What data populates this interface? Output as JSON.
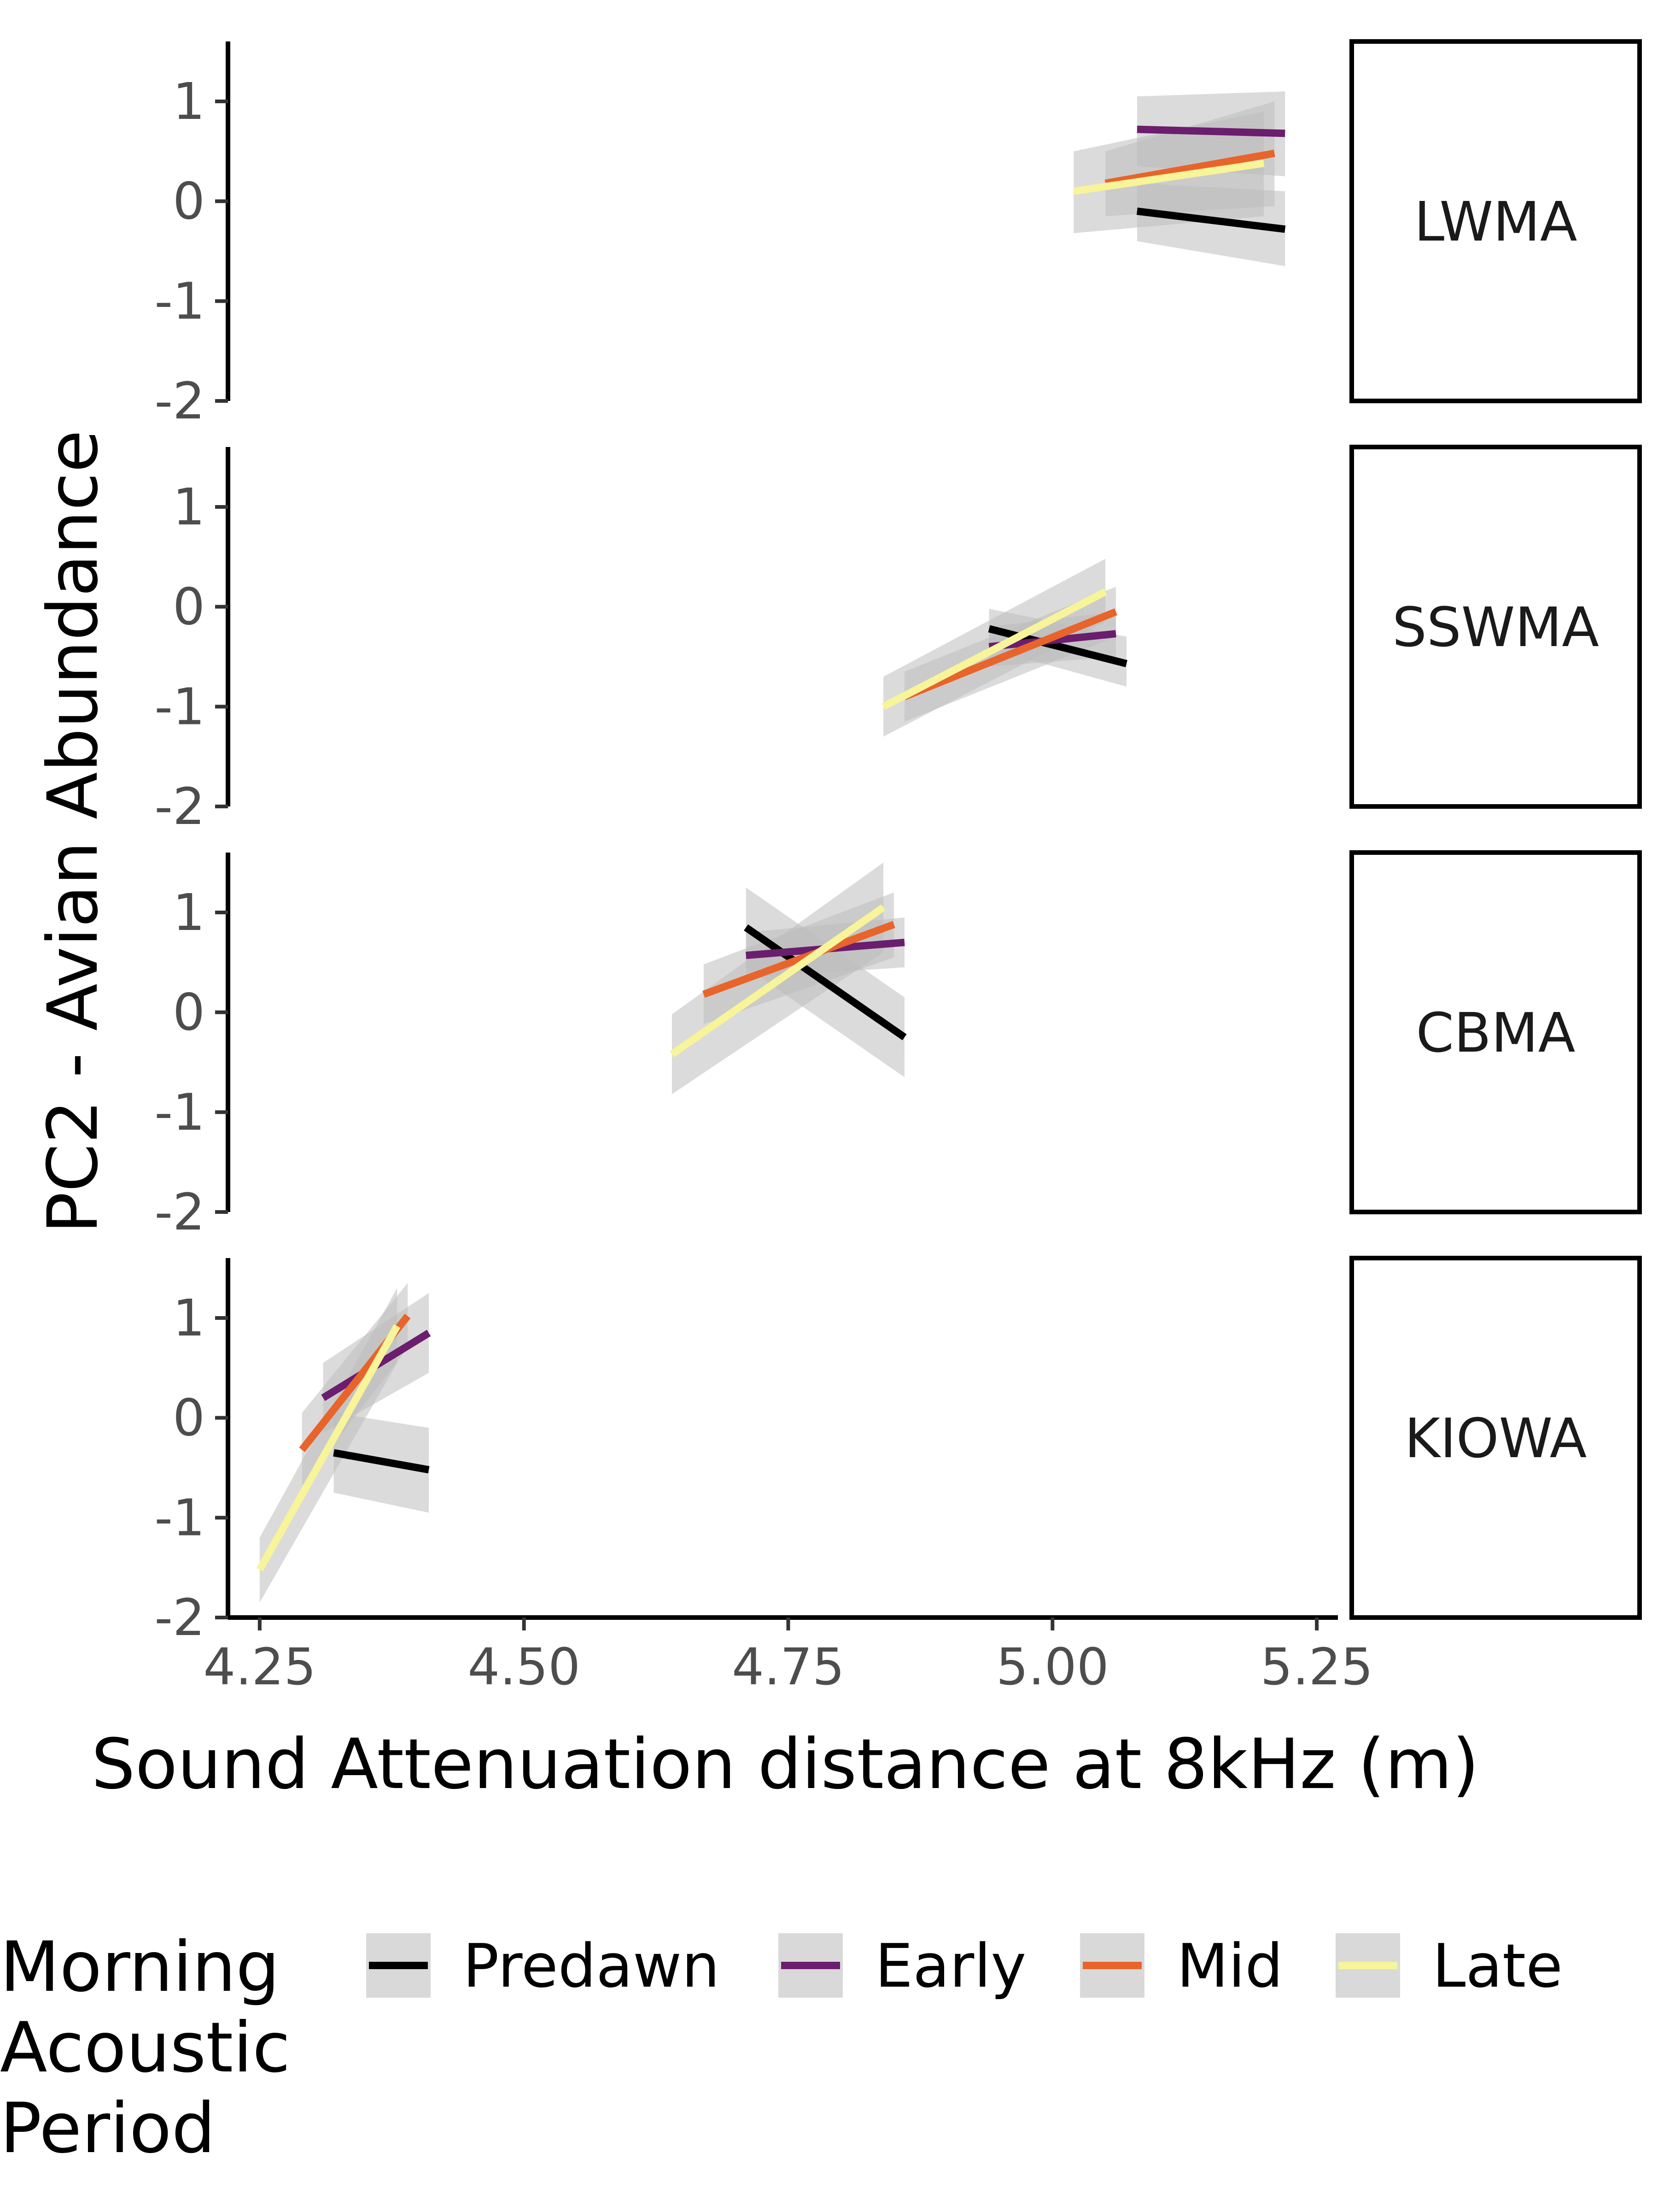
{
  "chart_data": {
    "type": "line",
    "title": "",
    "xlabel": "Sound Attenuation distance at 8kHz (m)",
    "ylabel": "PC2 - Avian Abundance",
    "xlim": [
      4.22,
      5.27
    ],
    "ylim": [
      -2,
      1.6
    ],
    "xticks": [
      "4.25",
      "4.50",
      "4.75",
      "5.00",
      "5.25"
    ],
    "yticks": [
      "-2",
      "-1",
      "0",
      "1"
    ],
    "grid": false,
    "legend": {
      "title": "Morning Acoustic Period",
      "title_lines": [
        "Morning",
        "Acoustic",
        "Period"
      ],
      "position": "bottom",
      "entries": [
        {
          "name": "Predawn",
          "color": "#000000"
        },
        {
          "name": "Early",
          "color": "#6b1d6e"
        },
        {
          "name": "Mid",
          "color": "#e8642a"
        },
        {
          "name": "Late",
          "color": "#f7f49a"
        }
      ]
    },
    "ribbon_color": "#bdbdbd",
    "panels": [
      {
        "label": "LWMA",
        "series": [
          {
            "name": "Predawn",
            "x": [
              5.08,
              5.22
            ],
            "y": [
              -0.1,
              -0.28
            ],
            "band": [
              [
                -0.4,
                0.18
              ],
              [
                -0.65,
                0.1
              ]
            ]
          },
          {
            "name": "Early",
            "x": [
              5.08,
              5.22
            ],
            "y": [
              0.72,
              0.68
            ],
            "band": [
              [
                0.35,
                1.05
              ],
              [
                0.25,
                1.1
              ]
            ]
          },
          {
            "name": "Mid",
            "x": [
              5.05,
              5.21
            ],
            "y": [
              0.18,
              0.48
            ],
            "band": [
              [
                -0.15,
                0.5
              ],
              [
                -0.05,
                1.0
              ]
            ]
          },
          {
            "name": "Late",
            "x": [
              5.02,
              5.2
            ],
            "y": [
              0.1,
              0.38
            ],
            "band": [
              [
                -0.32,
                0.5
              ],
              [
                -0.15,
                0.9
              ]
            ]
          }
        ]
      },
      {
        "label": "SSWMA",
        "series": [
          {
            "name": "Predawn",
            "x": [
              4.94,
              5.07
            ],
            "y": [
              -0.22,
              -0.57
            ],
            "band": [
              [
                -0.42,
                -0.02
              ],
              [
                -0.8,
                -0.3
              ]
            ]
          },
          {
            "name": "Early",
            "x": [
              4.94,
              5.06
            ],
            "y": [
              -0.4,
              -0.27
            ],
            "band": [
              [
                -0.6,
                -0.2
              ],
              [
                -0.5,
                -0.05
              ]
            ]
          },
          {
            "name": "Mid",
            "x": [
              4.86,
              5.06
            ],
            "y": [
              -0.9,
              -0.05
            ],
            "band": [
              [
                -1.15,
                -0.65
              ],
              [
                -0.3,
                0.2
              ]
            ]
          },
          {
            "name": "Late",
            "x": [
              4.84,
              5.05
            ],
            "y": [
              -1.0,
              0.15
            ],
            "band": [
              [
                -1.3,
                -0.7
              ],
              [
                -0.15,
                0.48
              ]
            ]
          }
        ]
      },
      {
        "label": "CBMA",
        "series": [
          {
            "name": "Predawn",
            "x": [
              4.71,
              4.86
            ],
            "y": [
              0.85,
              -0.25
            ],
            "band": [
              [
                0.45,
                1.25
              ],
              [
                -0.65,
                0.15
              ]
            ]
          },
          {
            "name": "Early",
            "x": [
              4.71,
              4.86
            ],
            "y": [
              0.57,
              0.7
            ],
            "band": [
              [
                0.35,
                0.8
              ],
              [
                0.45,
                0.95
              ]
            ]
          },
          {
            "name": "Mid",
            "x": [
              4.67,
              4.85
            ],
            "y": [
              0.18,
              0.88
            ],
            "band": [
              [
                -0.12,
                0.48
              ],
              [
                0.55,
                1.2
              ]
            ]
          },
          {
            "name": "Late",
            "x": [
              4.64,
              4.84
            ],
            "y": [
              -0.42,
              1.05
            ],
            "band": [
              [
                -0.82,
                -0.02
              ],
              [
                0.6,
                1.5
              ]
            ]
          }
        ]
      },
      {
        "label": "KIOWA",
        "series": [
          {
            "name": "Predawn",
            "x": [
              4.32,
              4.41
            ],
            "y": [
              -0.35,
              -0.52
            ],
            "band": [
              [
                -0.75,
                0.05
              ],
              [
                -0.95,
                -0.1
              ]
            ]
          },
          {
            "name": "Early",
            "x": [
              4.31,
              4.41
            ],
            "y": [
              0.2,
              0.85
            ],
            "band": [
              [
                -0.15,
                0.55
              ],
              [
                0.45,
                1.25
              ]
            ]
          },
          {
            "name": "Mid",
            "x": [
              4.29,
              4.39
            ],
            "y": [
              -0.32,
              1.02
            ],
            "band": [
              [
                -0.68,
                0.05
              ],
              [
                0.7,
                1.35
              ]
            ]
          },
          {
            "name": "Late",
            "x": [
              4.25,
              4.38
            ],
            "y": [
              -1.52,
              0.92
            ],
            "band": [
              [
                -1.85,
                -1.2
              ],
              [
                0.55,
                1.3
              ]
            ]
          }
        ]
      }
    ]
  }
}
